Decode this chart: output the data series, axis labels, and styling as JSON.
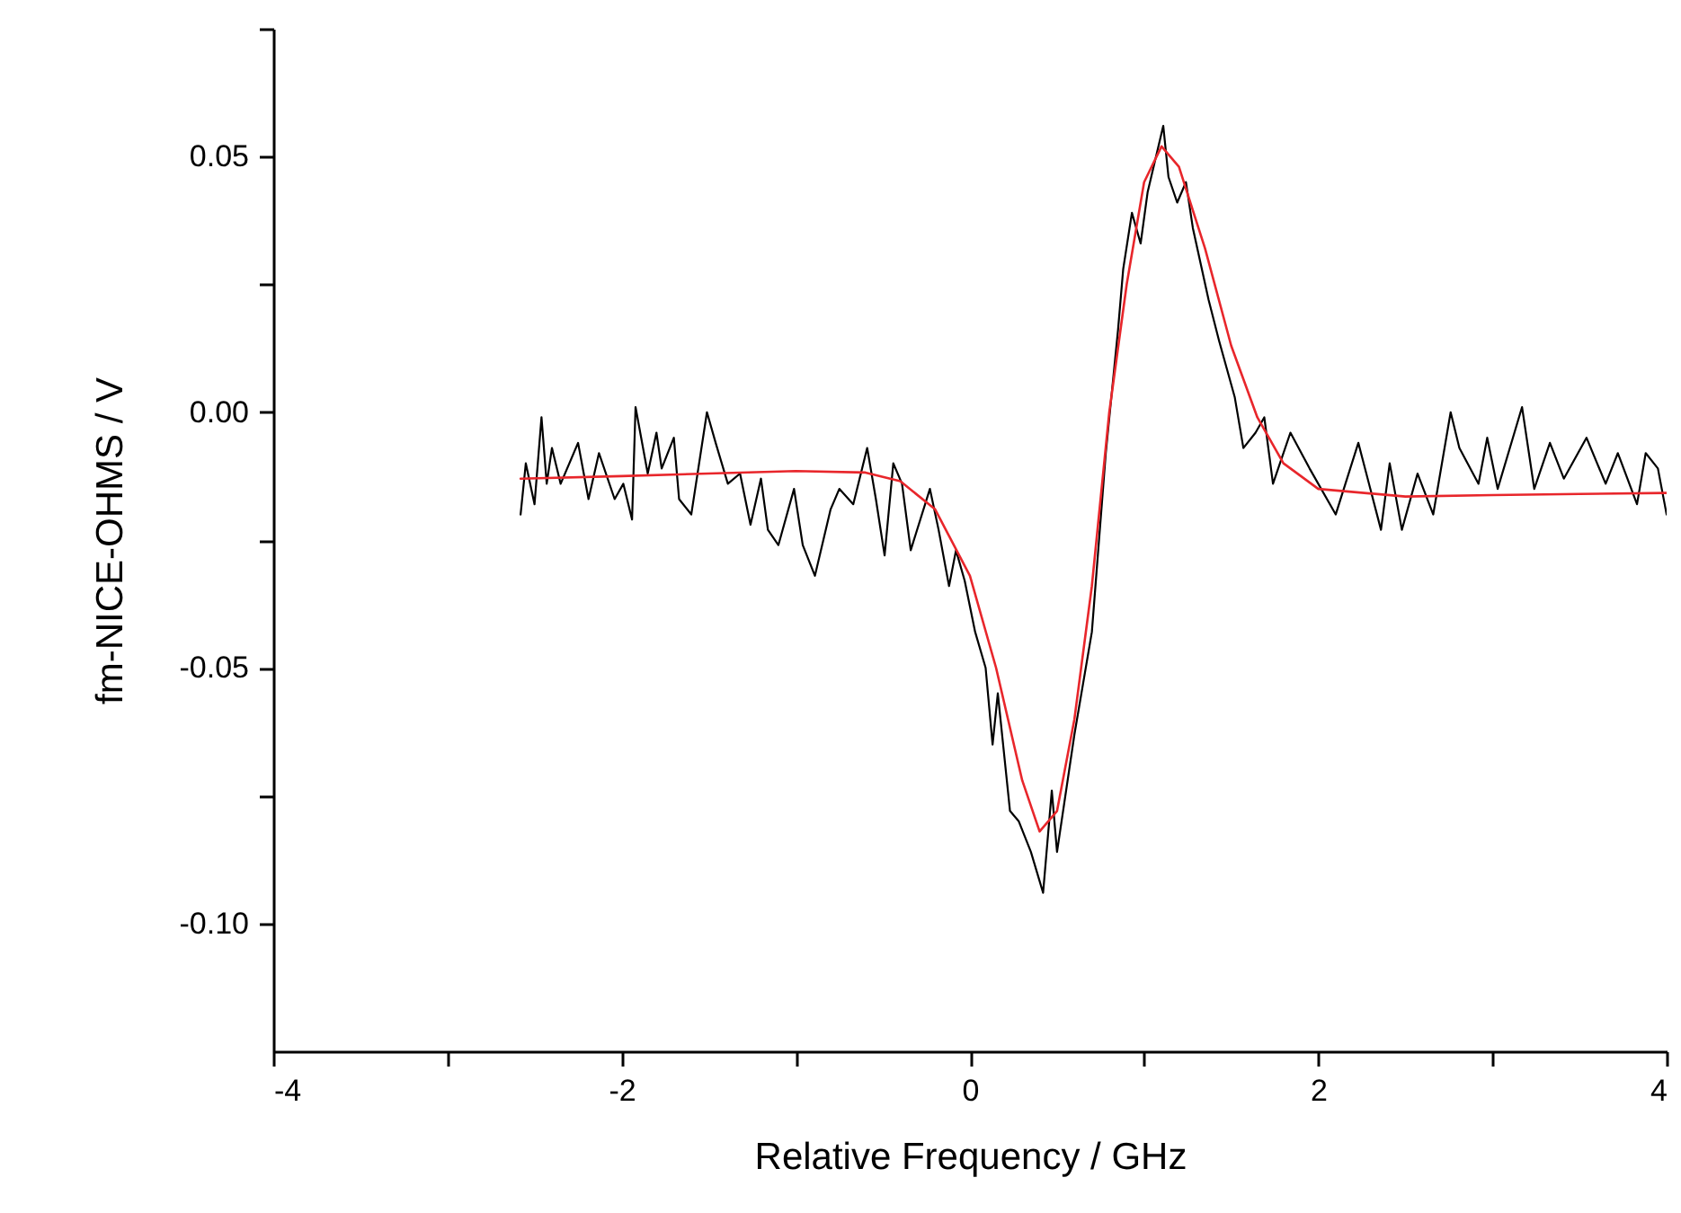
{
  "chart_data": {
    "type": "line",
    "xlabel": "Relative Frequency / GHz",
    "ylabel": "fm-NICE-OHMS / V",
    "xlim": [
      -4,
      4
    ],
    "ylim": [
      -0.125,
      0.075
    ],
    "xticks": [
      -4,
      {
        "value": -3,
        "label": null
      },
      -2,
      {
        "value": -1,
        "label": null
      },
      0,
      {
        "value": 1,
        "label": null
      },
      2,
      {
        "value": 3,
        "label": null
      },
      4
    ],
    "yticks": [
      {
        "value": -0.1,
        "label": "-0.10"
      },
      {
        "value": -0.075,
        "label": null
      },
      -0.05,
      {
        "value": -0.025,
        "label": null
      },
      {
        "value": 0,
        "label": "0.00"
      },
      {
        "value": 0.025,
        "label": null
      },
      0.05,
      {
        "value": 0.075,
        "label": null
      }
    ],
    "grid": false,
    "marker": "none",
    "line_style": "solid",
    "series": [
      {
        "color": "#000000",
        "x": [
          -2.58,
          -2.55,
          -2.5,
          -2.46,
          -2.43,
          -2.4,
          -2.35,
          -2.25,
          -2.19,
          -2.13,
          -2.04,
          -1.99,
          -1.94,
          -1.92,
          -1.85,
          -1.8,
          -1.77,
          -1.7,
          -1.67,
          -1.6,
          -1.51,
          -1.46,
          -1.39,
          -1.32,
          -1.26,
          -1.2,
          -1.16,
          -1.1,
          -1.01,
          -0.96,
          -0.89,
          -0.8,
          -0.75,
          -0.67,
          -0.59,
          -0.54,
          -0.49,
          -0.44,
          -0.39,
          -0.34,
          -0.23,
          -0.18,
          -0.12,
          -0.08,
          -0.03,
          0.03,
          0.09,
          0.13,
          0.16,
          0.23,
          0.28,
          0.35,
          0.42,
          0.47,
          0.5,
          0.6,
          0.7,
          0.78,
          0.85,
          0.88,
          0.93,
          0.98,
          1.02,
          1.11,
          1.14,
          1.19,
          1.24,
          1.28,
          1.37,
          1.43,
          1.52,
          1.57,
          1.64,
          1.69,
          1.74,
          1.84,
          1.95,
          2.1,
          2.23,
          2.36,
          2.41,
          2.48,
          2.57,
          2.66,
          2.76,
          2.81,
          2.92,
          2.97,
          3.03,
          3.17,
          3.24,
          3.33,
          3.41,
          3.54,
          3.65,
          3.72,
          3.83,
          3.88,
          3.95,
          4.0
        ],
        "values": [
          -0.02,
          -0.01,
          -0.018,
          -0.001,
          -0.014,
          -0.007,
          -0.014,
          -0.006,
          -0.017,
          -0.008,
          -0.017,
          -0.014,
          -0.021,
          0.001,
          -0.012,
          -0.004,
          -0.011,
          -0.005,
          -0.017,
          -0.02,
          0.0,
          -0.006,
          -0.014,
          -0.012,
          -0.022,
          -0.013,
          -0.023,
          -0.026,
          -0.015,
          -0.026,
          -0.032,
          -0.019,
          -0.015,
          -0.018,
          -0.007,
          -0.017,
          -0.028,
          -0.01,
          -0.014,
          -0.027,
          -0.015,
          -0.023,
          -0.034,
          -0.027,
          -0.033,
          -0.043,
          -0.05,
          -0.065,
          -0.055,
          -0.078,
          -0.08,
          -0.086,
          -0.094,
          -0.074,
          -0.086,
          -0.063,
          -0.043,
          -0.008,
          0.016,
          0.028,
          0.039,
          0.033,
          0.043,
          0.056,
          0.046,
          0.041,
          0.045,
          0.036,
          0.022,
          0.014,
          0.003,
          -0.007,
          -0.004,
          -0.001,
          -0.014,
          -0.004,
          -0.011,
          -0.02,
          -0.006,
          -0.023,
          -0.01,
          -0.023,
          -0.012,
          -0.02,
          0.0,
          -0.007,
          -0.014,
          -0.005,
          -0.015,
          0.001,
          -0.015,
          -0.006,
          -0.013,
          -0.005,
          -0.014,
          -0.008,
          -0.018,
          -0.008,
          -0.011,
          -0.02
        ]
      },
      {
        "color": "#e8262b",
        "x": [
          -2.58,
          -2,
          -1.5,
          -1,
          -0.6,
          -0.4,
          -0.2,
          0,
          0.15,
          0.3,
          0.4,
          0.5,
          0.6,
          0.7,
          0.8,
          0.9,
          1.0,
          1.1,
          1.2,
          1.35,
          1.5,
          1.65,
          1.8,
          2.0,
          2.5,
          3,
          3.5,
          4
        ],
        "values": [
          -0.013,
          -0.0125,
          -0.012,
          -0.0115,
          -0.0118,
          -0.0135,
          -0.019,
          -0.032,
          -0.05,
          -0.072,
          -0.082,
          -0.078,
          -0.06,
          -0.034,
          0.0,
          0.025,
          0.045,
          0.052,
          0.048,
          0.032,
          0.013,
          -0.001,
          -0.01,
          -0.015,
          -0.0165,
          -0.0162,
          -0.016,
          -0.0158
        ]
      }
    ]
  }
}
